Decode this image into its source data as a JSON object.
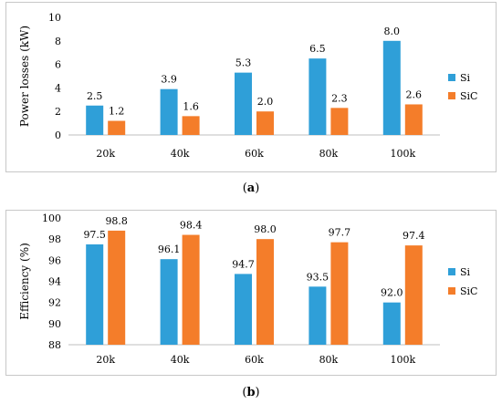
{
  "colors": {
    "Si": "#2f9fd8",
    "SiC": "#f47d2a",
    "axis": "#bfbfbf",
    "text": "#000000"
  },
  "captions": {
    "a_open": "(",
    "a_letter": "a",
    "a_close": ")",
    "b_open": "(",
    "b_letter": "b",
    "b_close": ")"
  },
  "chart_data": [
    {
      "type": "bar",
      "categories": [
        "20k",
        "40k",
        "60k",
        "80k",
        "100k"
      ],
      "series": [
        {
          "name": "Si",
          "values": [
            2.5,
            3.9,
            5.3,
            6.5,
            8.0
          ],
          "labels": [
            "2.5",
            "3.9",
            "5.3",
            "6.5",
            "8.0"
          ]
        },
        {
          "name": "SiC",
          "values": [
            1.2,
            1.6,
            2.0,
            2.3,
            2.6
          ],
          "labels": [
            "1.2",
            "1.6",
            "2.0",
            "2.3",
            "2.6"
          ]
        }
      ],
      "ylabel": "Power losses (kW)",
      "ylim": [
        0,
        10
      ],
      "yticks": [
        0,
        2,
        4,
        6,
        8,
        10
      ],
      "legend": "right",
      "grid": false
    },
    {
      "type": "bar",
      "categories": [
        "20k",
        "40k",
        "60k",
        "80k",
        "100k"
      ],
      "series": [
        {
          "name": "Si",
          "values": [
            97.5,
            96.1,
            94.7,
            93.5,
            92.0
          ],
          "labels": [
            "97.5",
            "96.1",
            "94.7",
            "93.5",
            "92.0"
          ]
        },
        {
          "name": "SiC",
          "values": [
            98.8,
            98.4,
            98.0,
            97.7,
            97.4
          ],
          "labels": [
            "98.8",
            "98.4",
            "98.0",
            "97.7",
            "97.4"
          ]
        }
      ],
      "ylabel": "Efficiency (%)",
      "ylim": [
        88,
        100
      ],
      "yticks": [
        88,
        90,
        92,
        94,
        96,
        98,
        100
      ],
      "legend": "right",
      "grid": false
    }
  ]
}
